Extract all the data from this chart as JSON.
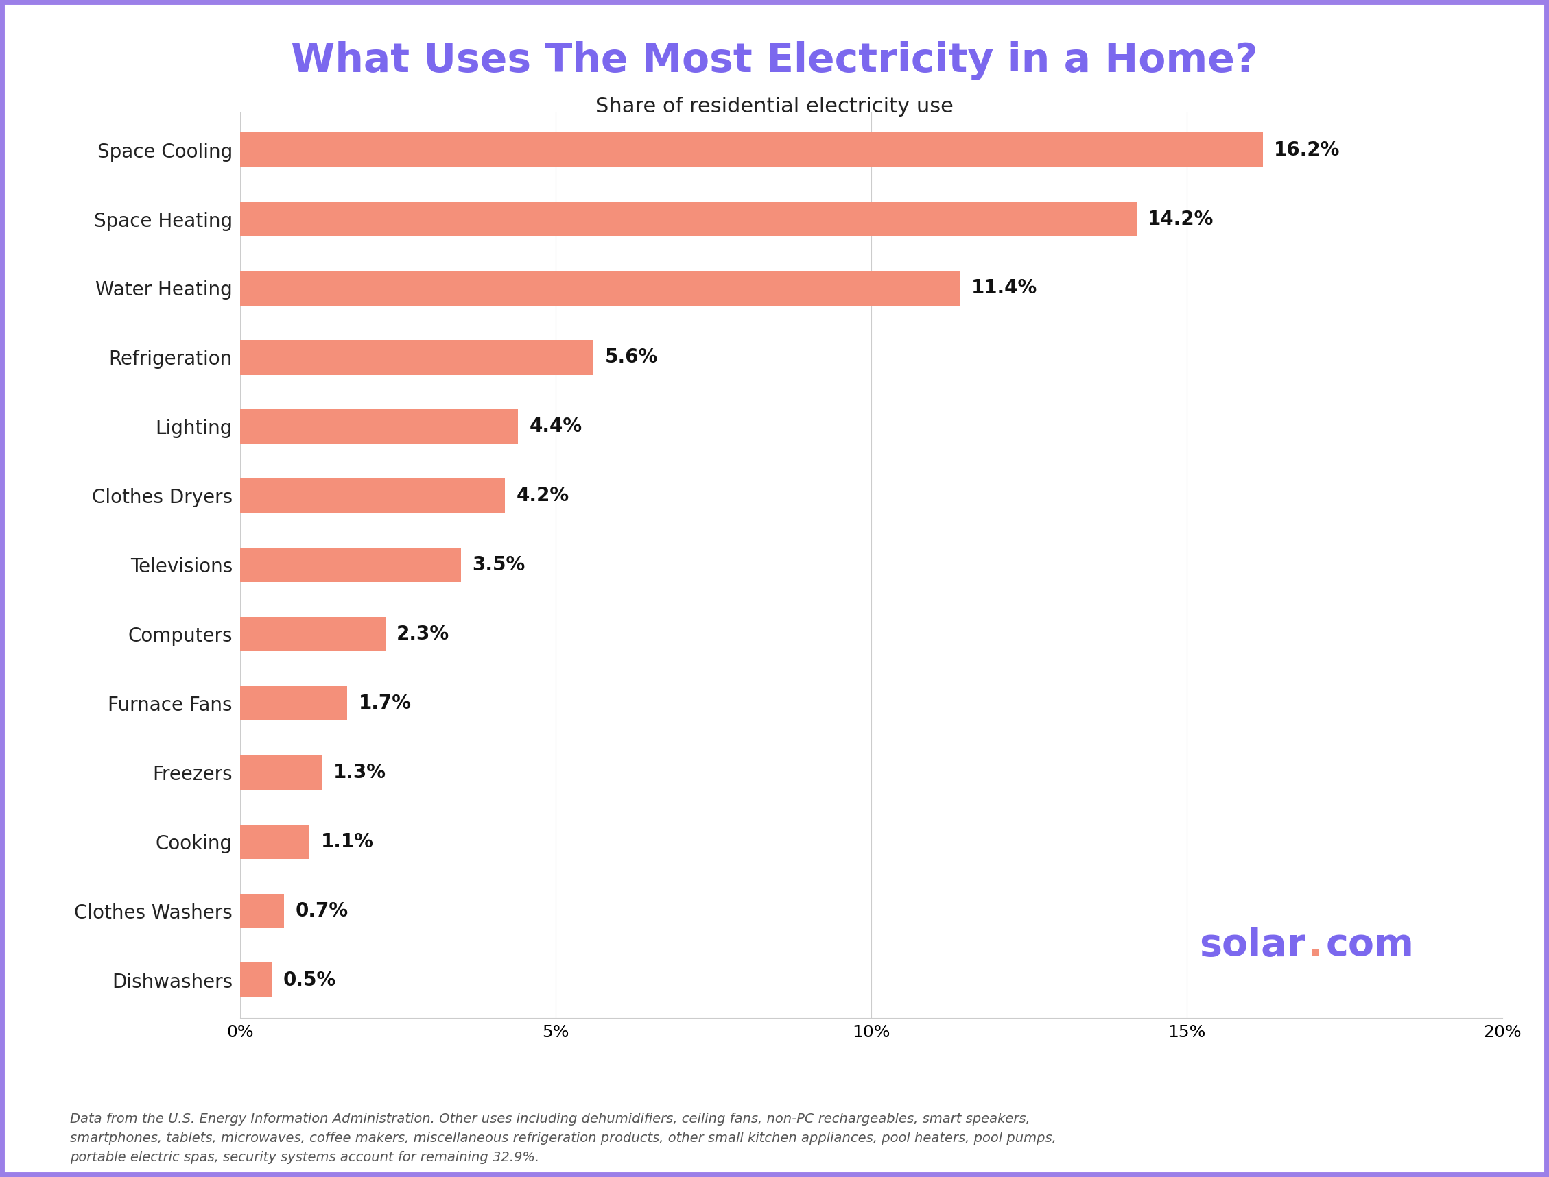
{
  "title": "What Uses The Most Electricity in a Home?",
  "subtitle": "Share of residential electricity use",
  "categories": [
    "Space Cooling",
    "Space Heating",
    "Water Heating",
    "Refrigeration",
    "Lighting",
    "Clothes Dryers",
    "Televisions",
    "Computers",
    "Furnace Fans",
    "Freezers",
    "Cooking",
    "Clothes Washers",
    "Dishwashers"
  ],
  "values": [
    16.2,
    14.2,
    11.4,
    5.6,
    4.4,
    4.2,
    3.5,
    2.3,
    1.7,
    1.3,
    1.1,
    0.7,
    0.5
  ],
  "bar_color": "#F4907A",
  "title_color": "#7B68EE",
  "subtitle_color": "#222222",
  "label_color": "#222222",
  "value_label_color": "#111111",
  "background_color": "#FFFFFF",
  "border_color": "#9B7FE8",
  "grid_color": "#CCCCCC",
  "watermark_color": "#7B68EE",
  "watermark_dot_color": "#F4907A",
  "footnote": "Data from the U.S. Energy Information Administration. Other uses including dehumidifiers, ceiling fans, non-PC rechargeables, smart speakers,\nsmartphones, tablets, microwaves, coffee makers, miscellaneous refrigeration products, other small kitchen appliances, pool heaters, pool pumps,\nportable electric spas, security systems account for remaining 32.9%.",
  "footnote_color": "#555555",
  "xlim": [
    0,
    20
  ],
  "xticks": [
    0,
    5,
    10,
    15,
    20
  ],
  "xtick_labels": [
    "0%",
    "5%",
    "10%",
    "15%",
    "20%"
  ],
  "title_fontsize": 42,
  "subtitle_fontsize": 22,
  "category_fontsize": 20,
  "value_fontsize": 20,
  "footnote_fontsize": 14,
  "xtick_fontsize": 18,
  "watermark_fontsize": 40,
  "bar_height": 0.5
}
